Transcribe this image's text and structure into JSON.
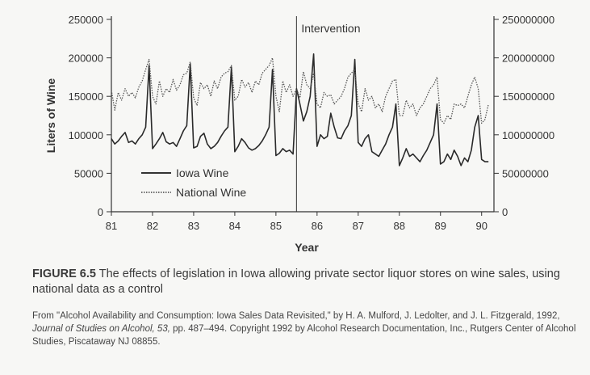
{
  "chart_data": {
    "type": "line",
    "xlabel": "Year",
    "ylabel_left": "Liters of Wine",
    "ylabel_right": "",
    "x_ticks": [
      "81",
      "82",
      "83",
      "84",
      "85",
      "86",
      "87",
      "88",
      "89",
      "90"
    ],
    "y_left_ticks": [
      "0",
      "50000",
      "100000",
      "150000",
      "200000",
      "250000"
    ],
    "y_right_ticks": [
      "0",
      "50000000",
      "100000000",
      "150000000",
      "200000000",
      "250000000"
    ],
    "xlim": [
      81,
      90.3
    ],
    "ylim_left": [
      0,
      250000
    ],
    "ylim_right": [
      0,
      250000000
    ],
    "annotation": {
      "text": "Intervention",
      "x": 85.5
    },
    "legend": {
      "placement": "lower-left",
      "entries": [
        "Iowa Wine",
        "National Wine"
      ]
    },
    "series": [
      {
        "name": "Iowa Wine",
        "axis": "left",
        "style": "solid",
        "x": [
          81.0,
          81.083,
          81.167,
          81.25,
          81.333,
          81.417,
          81.5,
          81.583,
          81.667,
          81.75,
          81.833,
          81.917,
          82.0,
          82.083,
          82.167,
          82.25,
          82.333,
          82.417,
          82.5,
          82.583,
          82.667,
          82.75,
          82.833,
          82.917,
          83.0,
          83.083,
          83.167,
          83.25,
          83.333,
          83.417,
          83.5,
          83.583,
          83.667,
          83.75,
          83.833,
          83.917,
          84.0,
          84.083,
          84.167,
          84.25,
          84.333,
          84.417,
          84.5,
          84.583,
          84.667,
          84.75,
          84.833,
          84.917,
          85.0,
          85.083,
          85.167,
          85.25,
          85.333,
          85.417,
          85.5,
          85.583,
          85.667,
          85.75,
          85.833,
          85.917,
          86.0,
          86.083,
          86.167,
          86.25,
          86.333,
          86.417,
          86.5,
          86.583,
          86.667,
          86.75,
          86.833,
          86.917,
          87.0,
          87.083,
          87.167,
          87.25,
          87.333,
          87.417,
          87.5,
          87.583,
          87.667,
          87.75,
          87.833,
          87.917,
          88.0,
          88.083,
          88.167,
          88.25,
          88.333,
          88.417,
          88.5,
          88.583,
          88.667,
          88.75,
          88.833,
          88.917,
          89.0,
          89.083,
          89.167,
          89.25,
          89.333,
          89.417,
          89.5,
          89.583,
          89.667,
          89.75,
          89.833,
          89.917,
          90.0,
          90.083,
          90.167
        ],
        "values": [
          95000,
          88000,
          92000,
          98000,
          103000,
          90000,
          92000,
          88000,
          95000,
          100000,
          110000,
          190000,
          82000,
          88000,
          95000,
          103000,
          91000,
          88000,
          90000,
          85000,
          95000,
          105000,
          112000,
          192000,
          83000,
          85000,
          98000,
          102000,
          88000,
          82000,
          85000,
          90000,
          98000,
          105000,
          110000,
          188000,
          78000,
          85000,
          95000,
          90000,
          83000,
          80000,
          82000,
          86000,
          92000,
          100000,
          110000,
          185000,
          73000,
          76000,
          82000,
          78000,
          80000,
          75000,
          160000,
          140000,
          118000,
          130000,
          150000,
          205000,
          85000,
          100000,
          95000,
          98000,
          128000,
          110000,
          96000,
          95000,
          105000,
          112000,
          125000,
          198000,
          90000,
          85000,
          95000,
          100000,
          78000,
          75000,
          72000,
          80000,
          88000,
          100000,
          110000,
          140000,
          60000,
          70000,
          82000,
          72000,
          75000,
          70000,
          65000,
          73000,
          80000,
          90000,
          100000,
          140000,
          62000,
          65000,
          75000,
          68000,
          80000,
          72000,
          60000,
          70000,
          65000,
          80000,
          110000,
          125000,
          68000,
          65000,
          65000
        ]
      },
      {
        "name": "National Wine",
        "axis": "right",
        "style": "dotted",
        "x": [
          81.0,
          81.083,
          81.167,
          81.25,
          81.333,
          81.417,
          81.5,
          81.583,
          81.667,
          81.75,
          81.833,
          81.917,
          82.0,
          82.083,
          82.167,
          82.25,
          82.333,
          82.417,
          82.5,
          82.583,
          82.667,
          82.75,
          82.833,
          82.917,
          83.0,
          83.083,
          83.167,
          83.25,
          83.333,
          83.417,
          83.5,
          83.583,
          83.667,
          83.75,
          83.833,
          83.917,
          84.0,
          84.083,
          84.167,
          84.25,
          84.333,
          84.417,
          84.5,
          84.583,
          84.667,
          84.75,
          84.833,
          84.917,
          85.0,
          85.083,
          85.167,
          85.25,
          85.333,
          85.417,
          85.5,
          85.583,
          85.667,
          85.75,
          85.833,
          85.917,
          86.0,
          86.083,
          86.167,
          86.25,
          86.333,
          86.417,
          86.5,
          86.583,
          86.667,
          86.75,
          86.833,
          86.917,
          87.0,
          87.083,
          87.167,
          87.25,
          87.333,
          87.417,
          87.5,
          87.583,
          87.667,
          87.75,
          87.833,
          87.917,
          88.0,
          88.083,
          88.167,
          88.25,
          88.333,
          88.417,
          88.5,
          88.583,
          88.667,
          88.75,
          88.833,
          88.917,
          89.0,
          89.083,
          89.167,
          89.25,
          89.333,
          89.417,
          89.5,
          89.583,
          89.667,
          89.75,
          89.833,
          89.917,
          90.0,
          90.083,
          90.167
        ],
        "values": [
          158000000,
          132000000,
          155000000,
          145000000,
          160000000,
          150000000,
          155000000,
          148000000,
          162000000,
          170000000,
          185000000,
          198000000,
          150000000,
          140000000,
          170000000,
          150000000,
          160000000,
          155000000,
          172000000,
          158000000,
          165000000,
          178000000,
          180000000,
          195000000,
          148000000,
          138000000,
          168000000,
          160000000,
          165000000,
          150000000,
          170000000,
          160000000,
          175000000,
          180000000,
          182000000,
          190000000,
          145000000,
          150000000,
          172000000,
          162000000,
          168000000,
          155000000,
          170000000,
          165000000,
          180000000,
          185000000,
          190000000,
          200000000,
          150000000,
          130000000,
          170000000,
          155000000,
          165000000,
          150000000,
          160000000,
          148000000,
          182000000,
          165000000,
          160000000,
          180000000,
          140000000,
          135000000,
          155000000,
          150000000,
          152000000,
          140000000,
          145000000,
          150000000,
          160000000,
          175000000,
          180000000,
          185000000,
          140000000,
          130000000,
          160000000,
          145000000,
          150000000,
          135000000,
          140000000,
          130000000,
          150000000,
          160000000,
          170000000,
          172000000,
          125000000,
          125000000,
          145000000,
          135000000,
          140000000,
          125000000,
          135000000,
          140000000,
          150000000,
          160000000,
          165000000,
          175000000,
          120000000,
          115000000,
          125000000,
          120000000,
          140000000,
          138000000,
          140000000,
          135000000,
          150000000,
          165000000,
          175000000,
          160000000,
          115000000,
          120000000,
          140000000
        ]
      }
    ]
  },
  "caption": {
    "label": "FIGURE 6.5",
    "text": " The effects of legislation in Iowa allowing private sector liquor stores on wine sales, using national data as a control"
  },
  "source": {
    "pre": "From \"Alcohol Availability and Consumption: Iowa Sales Data Revisited,\" by H. A. Mulford, J. Ledolter, and J. L. Fitzgerald, 1992, ",
    "journal": "Journal of Studies on Alcohol, 53,",
    "post": " pp. 487–494. Copyright 1992 by Alcohol Research Documentation, Inc., Rutgers Center of Alcohol Studies, Piscataway NJ 08855."
  }
}
